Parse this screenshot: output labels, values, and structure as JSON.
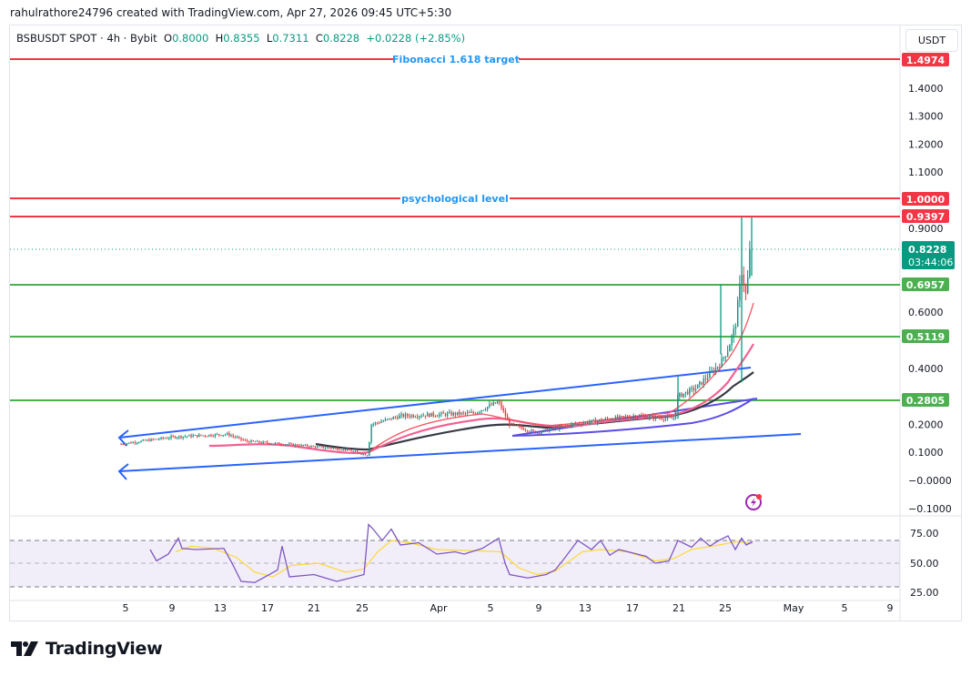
{
  "header": {
    "credit": "rahulrathore24796 created with TradingView.com, Apr 27, 2026 09:45 UTC+5:30"
  },
  "legend": {
    "symbol": "BSBUSDT SPOT · 4h · Bybit",
    "open_label": "O",
    "open": "0.8000",
    "high_label": "H",
    "high": "0.8355",
    "low_label": "L",
    "low": "0.7311",
    "close_label": "C",
    "close": "0.8228",
    "change": "+0.0228 (+2.85%)"
  },
  "price_scale": {
    "currency_button": "USDT",
    "ticks": [
      "1.4000",
      "1.3000",
      "1.2000",
      "1.1000",
      "0.9000",
      "0.6000",
      "0.4000",
      "0.2000",
      "0.1000",
      "−0.0000",
      "−0.1000"
    ],
    "last_price": "0.8228",
    "countdown": "03:44:06"
  },
  "rsi_scale": {
    "ticks": [
      "75.00",
      "50.00",
      "25.00"
    ]
  },
  "time_axis": {
    "ticks": [
      "5",
      "9",
      "13",
      "17",
      "21",
      "25",
      "Apr",
      "5",
      "9",
      "13",
      "17",
      "21",
      "25",
      "May",
      "5",
      "9"
    ]
  },
  "branding": {
    "logo_text": "TradingView"
  },
  "colors": {
    "up": "#089981",
    "down": "#f23645",
    "resistance": "#f23645",
    "support": "#4caf50",
    "channel": "#2962ff",
    "label_blue": "#2196f3",
    "rsi": "#7e57c2",
    "rsi_ma": "#fdd835",
    "ema_fast": "#f7525f",
    "ema_mid": "#f06292",
    "ema_slow": "#363a45",
    "ema_long": "#5b4de8"
  },
  "chart_data": {
    "type": "candlestick",
    "title": "BSBUSDT SPOT · 4h · Bybit",
    "xlabel": "",
    "ylabel": "USDT",
    "ylim": [
      -0.1,
      1.55
    ],
    "x_ticks": [
      "Mar 5",
      "Mar 9",
      "Mar 13",
      "Mar 17",
      "Mar 21",
      "Mar 25",
      "Apr",
      "Apr 5",
      "Apr 9",
      "Apr 13",
      "Apr 17",
      "Apr 21",
      "Apr 25",
      "May",
      "May 5",
      "May 9"
    ],
    "ohlc_last": {
      "open": 0.8,
      "high": 0.8355,
      "low": 0.7311,
      "close": 0.8228,
      "change": 0.0228,
      "change_pct": 2.85
    },
    "horizontal_levels": [
      {
        "price": 1.4974,
        "label": "Fibonacci 1.618 target",
        "color": "#f23645"
      },
      {
        "price": 1.0,
        "label": "psychological level",
        "color": "#f23645"
      },
      {
        "price": 0.9397,
        "label": "",
        "color": "#f23645"
      },
      {
        "price": 0.6957,
        "label": "",
        "color": "#4caf50"
      },
      {
        "price": 0.5119,
        "label": "",
        "color": "#4caf50"
      },
      {
        "price": 0.2805,
        "label": "",
        "color": "#4caf50"
      }
    ],
    "price_series_approx": {
      "dates": [
        "Mar 4",
        "Mar 9",
        "Mar 13",
        "Mar 17",
        "Mar 21",
        "Mar 25",
        "Mar 26",
        "Mar 30",
        "Apr 5",
        "Apr 7",
        "Apr 13",
        "Apr 17",
        "Apr 20",
        "Apr 21",
        "Apr 23",
        "Apr 24",
        "Apr 25",
        "Apr 26",
        "Apr 27"
      ],
      "close": [
        0.13,
        0.16,
        0.15,
        0.12,
        0.1,
        0.09,
        0.2,
        0.24,
        0.28,
        0.19,
        0.2,
        0.23,
        0.22,
        0.31,
        0.33,
        0.42,
        0.55,
        0.78,
        0.8228
      ]
    },
    "channel": {
      "upper": [
        {
          "date": "Mar 4",
          "price": 0.14
        },
        {
          "date": "Apr 26",
          "price": 0.4
        }
      ],
      "lower": [
        {
          "date": "Mar 4",
          "price": 0.03
        },
        {
          "date": "Apr 30",
          "price": 0.16
        }
      ]
    },
    "rsi": {
      "ylim": [
        20,
        90
      ],
      "levels": [
        70,
        50,
        30
      ],
      "ticks": [
        75,
        50,
        25
      ],
      "last": 67
    }
  }
}
